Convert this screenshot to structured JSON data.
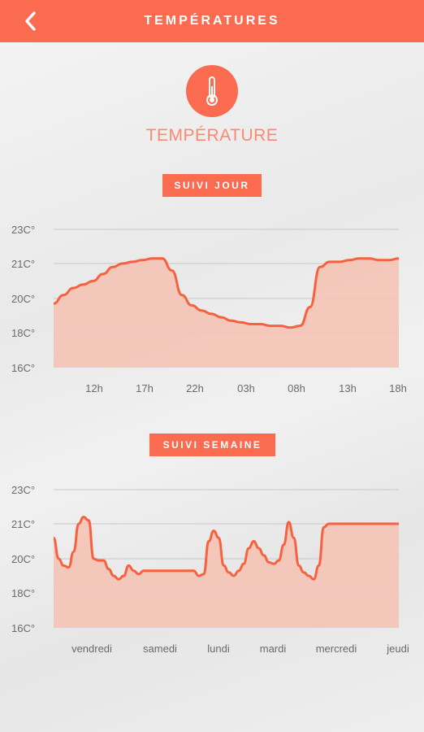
{
  "header": {
    "title": "TEMPÉRATURES",
    "back_icon": "chevron-left-icon"
  },
  "hero": {
    "icon": "thermometer-icon",
    "title": "TEMPÉRATURE"
  },
  "colors": {
    "accent": "#fa6b50",
    "fill": "#f5c3b6",
    "line": "#f7613f",
    "grid": "#c8c8c8"
  },
  "sections": {
    "day_label": "SUIVI JOUR",
    "week_label": "SUIVI SEMAINE"
  },
  "chart_data": [
    {
      "type": "area",
      "title": "SUIVI JOUR",
      "y_ticks": [
        "23C°",
        "21C°",
        "20C°",
        "18C°",
        "16C°"
      ],
      "x_ticks": [
        "12h",
        "17h",
        "22h",
        "03h",
        "08h",
        "13h",
        "18h"
      ],
      "grid": true,
      "x": [
        0,
        1,
        2,
        3,
        4,
        5,
        6,
        7,
        8,
        9,
        10,
        11,
        12,
        13,
        14,
        15,
        16,
        17,
        18,
        19,
        20,
        21,
        22,
        23,
        24,
        25,
        26,
        27,
        28,
        29,
        30,
        31,
        32,
        33,
        34,
        35
      ],
      "values": [
        19.7,
        20.1,
        20.3,
        20.4,
        20.5,
        20.7,
        20.9,
        21.0,
        21.1,
        21.2,
        21.3,
        21.3,
        20.8,
        20.1,
        19.6,
        19.3,
        19.1,
        18.9,
        18.7,
        18.6,
        18.5,
        18.5,
        18.4,
        18.4,
        18.3,
        18.4,
        19.5,
        20.9,
        21.1,
        21.1,
        21.2,
        21.3,
        21.3,
        21.2,
        21.2,
        21.3
      ],
      "ylim": [
        16,
        23
      ]
    },
    {
      "type": "area",
      "title": "SUIVI SEMAINE",
      "y_ticks": [
        "23C°",
        "21C°",
        "20C°",
        "18C°",
        "16C°"
      ],
      "x_ticks": [
        "vendredi",
        "samedi",
        "lundi",
        "mardi",
        "mercredi",
        "jeudi"
      ],
      "grid": true,
      "x": [
        0,
        1,
        2,
        3,
        4,
        5,
        6,
        7,
        8,
        9,
        10,
        11,
        12,
        13,
        14,
        15,
        16,
        17,
        18,
        19,
        20,
        21,
        22,
        23,
        24,
        25,
        26,
        27,
        28,
        29,
        30,
        31,
        32,
        33,
        34,
        35,
        36,
        37,
        38,
        39,
        40,
        41,
        42,
        43,
        44,
        45,
        46,
        47,
        48,
        49,
        50,
        51,
        52,
        53,
        54,
        55,
        56,
        57,
        58,
        59,
        60,
        61,
        62,
        63,
        64,
        65,
        66,
        67,
        68,
        69
      ],
      "values": [
        20.6,
        20.0,
        19.6,
        19.5,
        20.2,
        21.0,
        21.4,
        21.2,
        20.0,
        19.9,
        19.9,
        19.4,
        19.0,
        18.8,
        19.0,
        19.6,
        19.3,
        19.1,
        19.3,
        19.3,
        19.3,
        19.3,
        19.3,
        19.3,
        19.3,
        19.3,
        19.3,
        19.3,
        19.3,
        19.0,
        19.1,
        20.5,
        20.8,
        20.6,
        19.6,
        19.2,
        19.0,
        19.3,
        19.7,
        20.3,
        20.5,
        20.3,
        20.1,
        19.8,
        19.7,
        19.9,
        20.4,
        21.1,
        20.6,
        19.6,
        19.2,
        19.0,
        18.8,
        19.6,
        20.9,
        21.0,
        21.0,
        21.0,
        21.0,
        21.0,
        21.0,
        21.0,
        21.0,
        21.0,
        21.0,
        21.0,
        21.0,
        21.0,
        21.0,
        21.0
      ],
      "ylim": [
        16,
        23
      ]
    }
  ]
}
